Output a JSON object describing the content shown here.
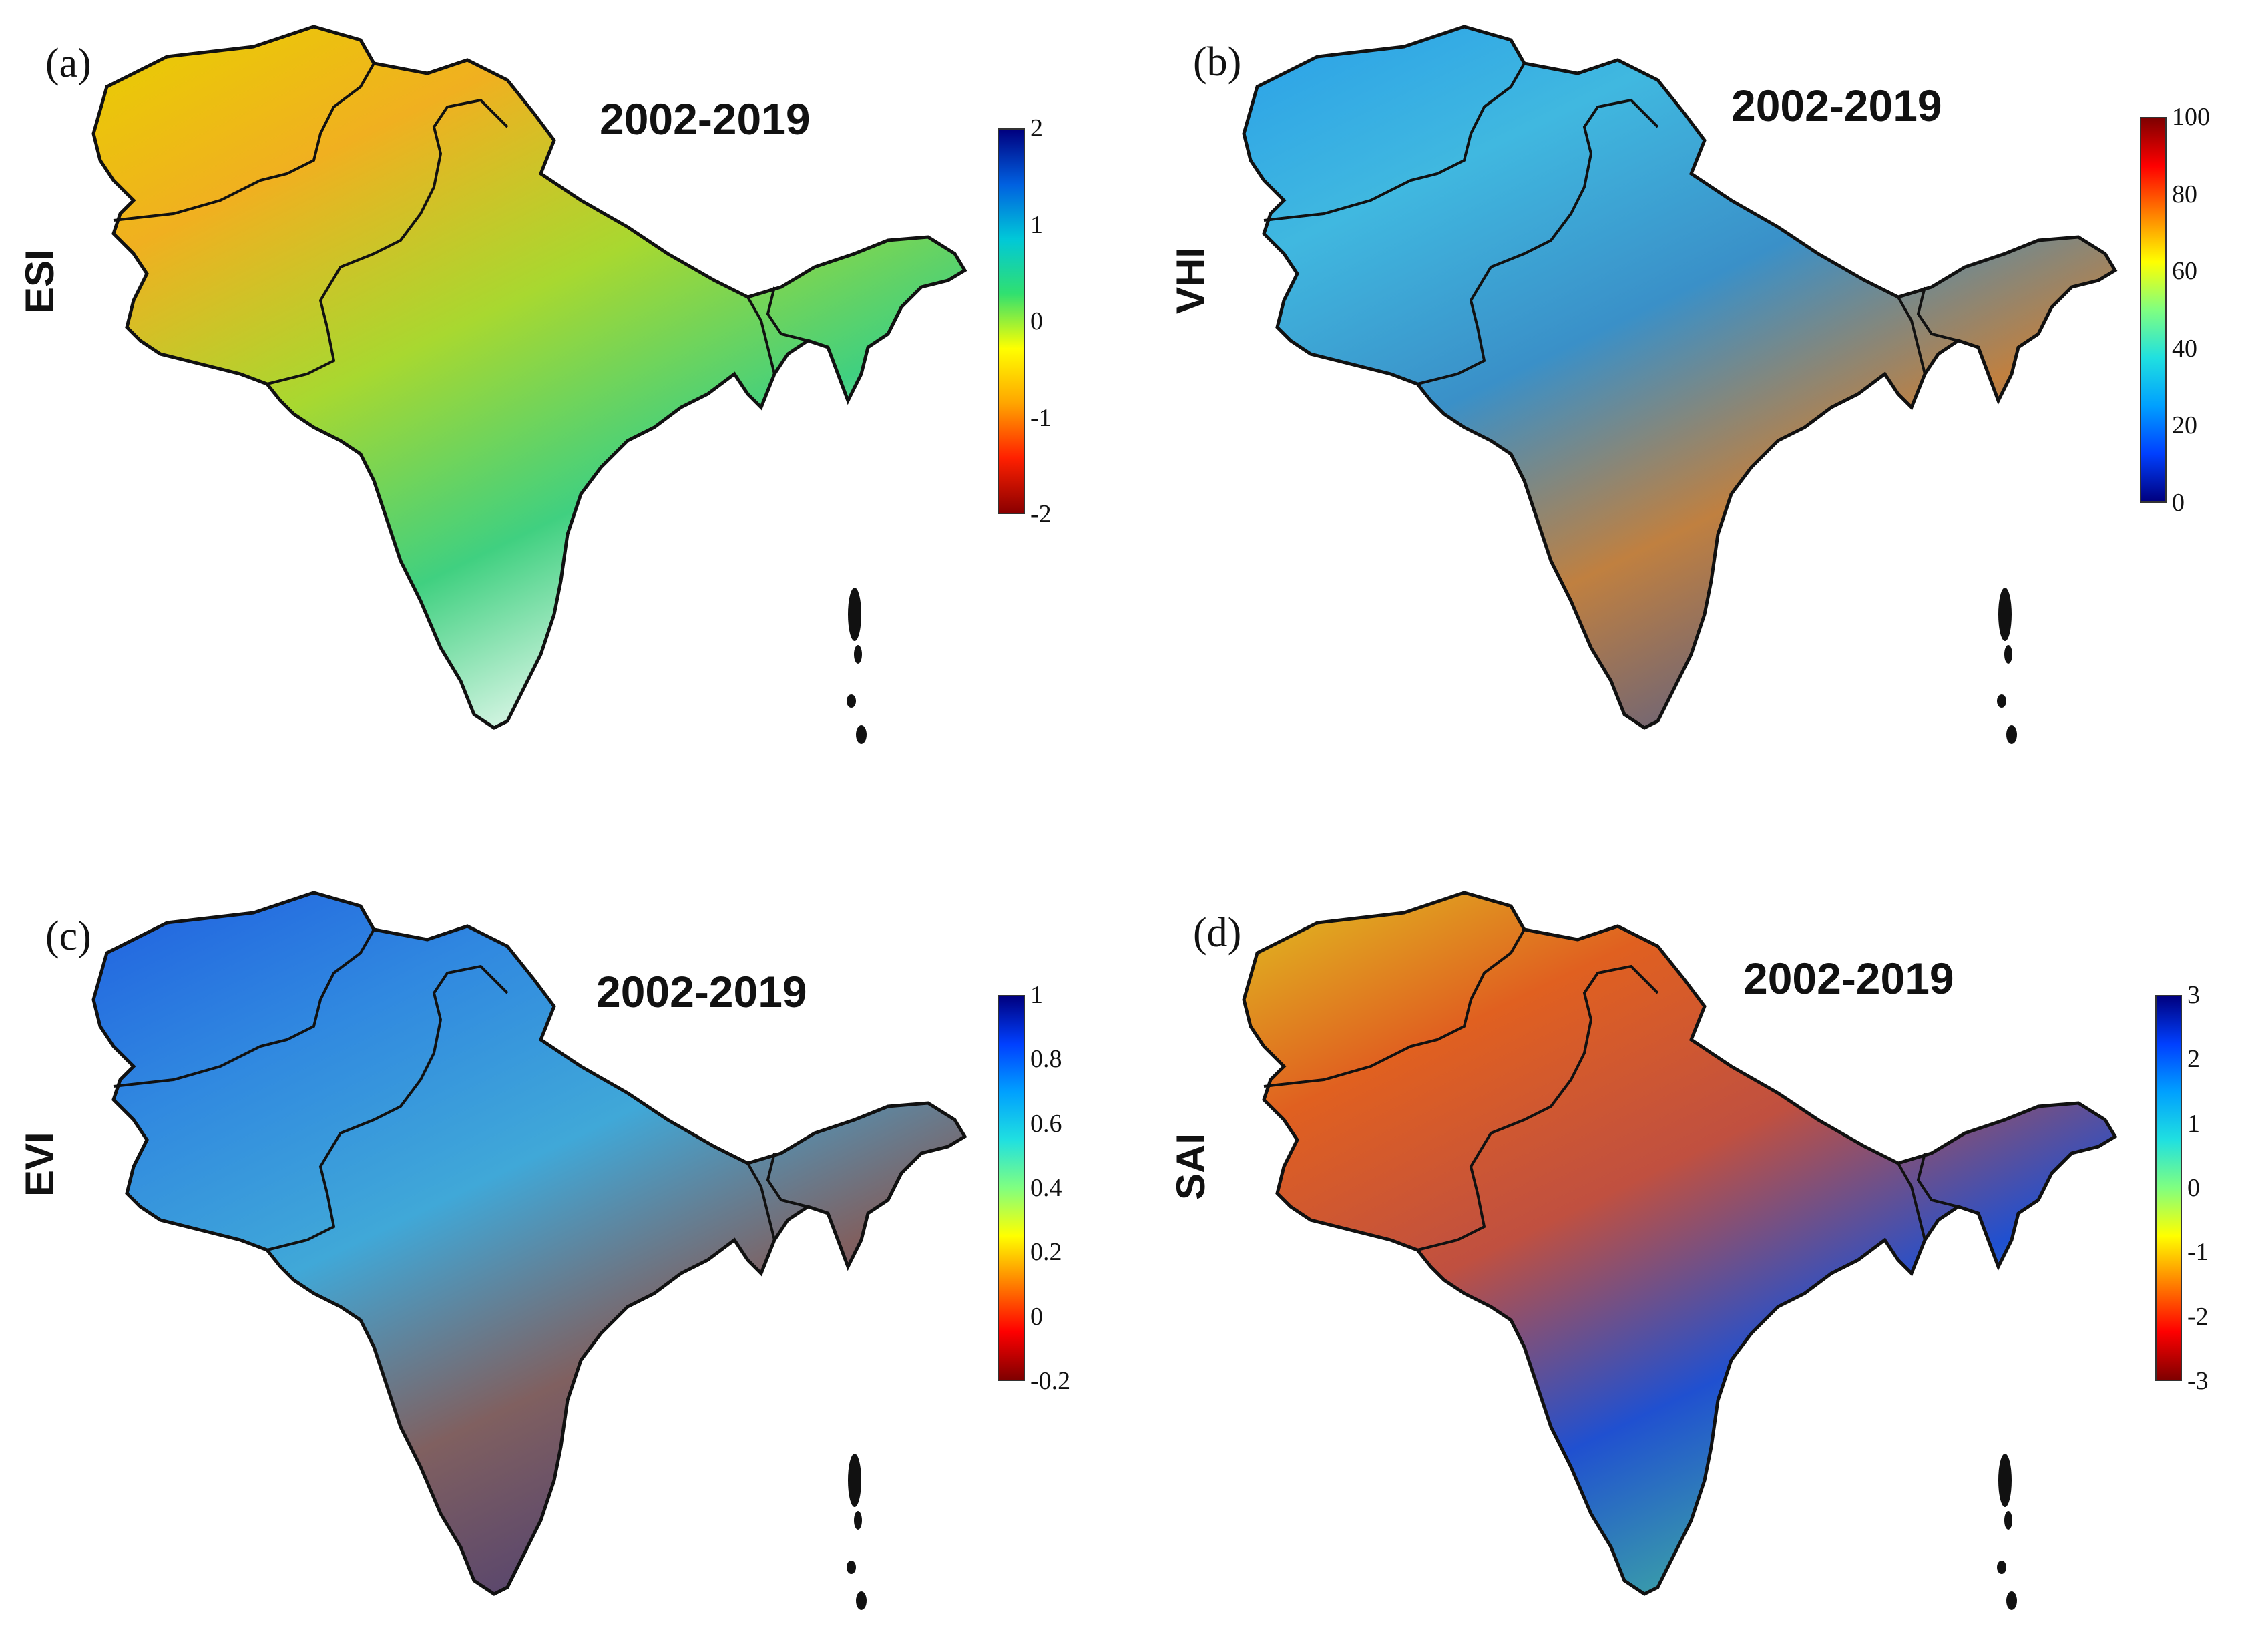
{
  "figure": {
    "panels": [
      {
        "id": "a",
        "label": "(a)",
        "period": "2002-2019",
        "variable": "ESI",
        "colormap": [
          "#8b0000",
          "#ff2000",
          "#ffa500",
          "#ffff00",
          "#30e070",
          "#00c8d8",
          "#0060e0",
          "#00007f"
        ],
        "ticks": [
          "2",
          "1",
          "0",
          "-1",
          "-2"
        ],
        "fill": [
          "#e8d000",
          "#f0b020",
          "#a8d830",
          "#40d080",
          "#ffffff"
        ]
      },
      {
        "id": "b",
        "label": "(b)",
        "period": "2002-2019",
        "variable": "VHI",
        "colormap": [
          "#00007f",
          "#0040ff",
          "#00a0ff",
          "#20e0e0",
          "#80ff80",
          "#ffff00",
          "#ff8000",
          "#ff0000",
          "#7f0000"
        ],
        "ticks": [
          "100",
          "80",
          "60",
          "40",
          "20",
          "0"
        ],
        "fill": [
          "#2aa0e8",
          "#40b8e0",
          "#3a90c8",
          "#c08040",
          "#606080"
        ]
      },
      {
        "id": "c",
        "label": "(c)",
        "period": "2002-2019",
        "variable": "EVI",
        "colormap": [
          "#7f0000",
          "#ff0000",
          "#ff8000",
          "#ffff00",
          "#80ff80",
          "#20e0e0",
          "#00a0ff",
          "#0040ff",
          "#00007f"
        ],
        "ticks": [
          "1",
          "0.8",
          "0.6",
          "0.4",
          "0.2",
          "0",
          "-0.2"
        ],
        "fill": [
          "#2060e0",
          "#3088e0",
          "#40a8d8",
          "#806060",
          "#504070"
        ]
      },
      {
        "id": "d",
        "label": "(d)",
        "period": "2002-2019",
        "variable": "SAI",
        "colormap": [
          "#7f0000",
          "#ff0000",
          "#ff8000",
          "#ffff00",
          "#80ff80",
          "#20e0e0",
          "#00a0ff",
          "#0040ff",
          "#00007f"
        ],
        "ticks": [
          "3",
          "2",
          "1",
          "0",
          "-1",
          "-2",
          "-3"
        ],
        "fill": [
          "#e0c020",
          "#e06020",
          "#c05040",
          "#2050d0",
          "#40b0a0"
        ]
      }
    ]
  }
}
